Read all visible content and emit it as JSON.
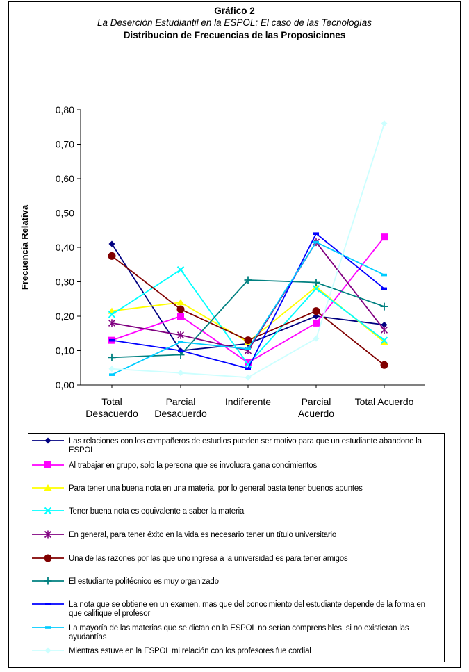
{
  "header": {
    "figure_number": "Gráfico 2",
    "subtitle": "La Deserción Estudiantil en la ESPOL: El caso de las Tecnologías",
    "title": "Distribucion de Frecuencias de las Proposiciones"
  },
  "chart_data": {
    "type": "line",
    "title": "Distribucion de Frecuencias de las Proposiciones",
    "subtitle": "La Deserción Estudiantil en la ESPOL: El caso de las Tecnologías",
    "xlabel": "",
    "ylabel": "Frecuencia  Relativa",
    "categories": [
      "Total Desacuerdo",
      "Parcial Desacuerdo",
      "Indiferente",
      "Parcial Acuerdo",
      "Total Acuerdo"
    ],
    "yticks": [
      "0,00",
      "0,10",
      "0,20",
      "0,30",
      "0,40",
      "0,50",
      "0,60",
      "0,70",
      "0,80"
    ],
    "ylim": [
      0,
      0.8
    ],
    "grid": false,
    "legend_position": "bottom",
    "series": [
      {
        "name": "Las relaciones con los compañeros  de estudios pueden ser motivo para que un estudiante abandone la ESPOL",
        "color": "#000080",
        "marker": "diamond",
        "values": [
          0.41,
          0.1,
          0.12,
          0.2,
          0.175
        ]
      },
      {
        "name": "Al trabajar en grupo, solo  la persona que se involucra gana concimientos",
        "color": "#ff00ff",
        "marker": "square",
        "values": [
          0.13,
          0.2,
          0.065,
          0.18,
          0.43
        ]
      },
      {
        "name": "Para tener una buena nota en una materia, por lo general basta tener  buenos apuntes",
        "color": "#ffff00",
        "marker": "triangle",
        "values": [
          0.215,
          0.24,
          0.125,
          0.285,
          0.125
        ]
      },
      {
        "name": "Tener buena nota es equivalente a saber la materia",
        "color": "#00ffff",
        "marker": "x",
        "values": [
          0.205,
          0.335,
          0.06,
          0.28,
          0.13
        ]
      },
      {
        "name": "En general, para tener éxito en la vida es necesario tener un título universitario",
        "color": "#800080",
        "marker": "star",
        "values": [
          0.18,
          0.145,
          0.1,
          0.415,
          0.16
        ]
      },
      {
        "name": "Una de las razones por las que uno ingresa a la universidad es para tener amigos",
        "color": "#800000",
        "marker": "circle",
        "values": [
          0.375,
          0.22,
          0.13,
          0.215,
          0.058
        ]
      },
      {
        "name": "El estudiante politécnico es muy organizado",
        "color": "#008080",
        "marker": "plus",
        "values": [
          0.08,
          0.088,
          0.305,
          0.298,
          0.228
        ]
      },
      {
        "name": "La nota que se obtiene en un examen, mas que del conocimiento del estudiante  depende de la forma en que califique  el profesor",
        "color": "#0000ff",
        "marker": "dash",
        "values": [
          0.13,
          0.1,
          0.048,
          0.44,
          0.28
        ]
      },
      {
        "name": "La mayoría de las materias que se dictan en la ESPOL no serían comprensibles, si no existieran las ayudantías",
        "color": "#00ccff",
        "marker": "dash",
        "values": [
          0.03,
          0.125,
          0.105,
          0.415,
          0.32
        ]
      },
      {
        "name": "Mientras estuve en la ESPOL mi relación con los profesores fue cordial",
        "color": "#ccffff",
        "marker": "diamond",
        "values": [
          0.047,
          0.035,
          0.022,
          0.135,
          0.76
        ]
      }
    ]
  }
}
